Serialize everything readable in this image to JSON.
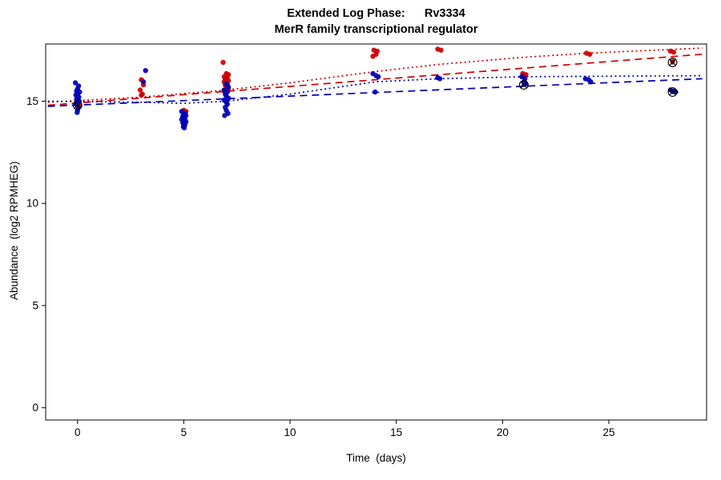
{
  "chart_data": {
    "type": "scatter",
    "title": "Extended Log Phase:      Rv3334",
    "subtitle": "MerR family transcriptional regulator",
    "xlabel": "Time  (days)",
    "ylabel": "Abundance  (log2 RPMHEG)",
    "xlim": [
      -1.5,
      29.6
    ],
    "ylim": [
      -0.6,
      17.8
    ],
    "xticks": [
      0,
      5,
      10,
      15,
      20,
      25
    ],
    "yticks": [
      0,
      5,
      10,
      15
    ],
    "grid": false,
    "legend": "none",
    "colors": {
      "red_series": "#cc0000",
      "blue_series": "#0000b4",
      "marker_outline": "#000000"
    },
    "series": [
      {
        "name": "red-points",
        "color": "#cc0000",
        "points": [
          [
            -0.05,
            15.05
          ],
          [
            0.05,
            14.95
          ],
          [
            0.0,
            14.9
          ],
          [
            0.1,
            14.8
          ],
          [
            3.0,
            16.05
          ],
          [
            3.1,
            15.8
          ],
          [
            2.95,
            15.55
          ],
          [
            3.05,
            15.35
          ],
          [
            3.0,
            15.3
          ],
          [
            5.0,
            14.55
          ],
          [
            5.1,
            14.5
          ],
          [
            6.85,
            16.9
          ],
          [
            7.0,
            16.35
          ],
          [
            7.1,
            16.3
          ],
          [
            6.9,
            16.2
          ],
          [
            7.05,
            16.15
          ],
          [
            6.95,
            16.1
          ],
          [
            7.0,
            16.05
          ],
          [
            7.1,
            16.0
          ],
          [
            6.9,
            15.95
          ],
          [
            7.0,
            15.9
          ],
          [
            7.05,
            15.85
          ],
          [
            6.95,
            15.8
          ],
          [
            7.0,
            15.7
          ],
          [
            7.1,
            15.6
          ],
          [
            6.9,
            15.5
          ],
          [
            13.95,
            17.5
          ],
          [
            14.1,
            17.45
          ],
          [
            14.05,
            17.3
          ],
          [
            13.9,
            17.2
          ],
          [
            16.95,
            17.55
          ],
          [
            17.1,
            17.5
          ],
          [
            20.95,
            16.35
          ],
          [
            21.1,
            16.3
          ],
          [
            21.0,
            16.25
          ],
          [
            23.95,
            17.35
          ],
          [
            24.1,
            17.3
          ],
          [
            27.9,
            17.45
          ],
          [
            28.05,
            17.4
          ],
          [
            28.0,
            16.95
          ]
        ]
      },
      {
        "name": "blue-points",
        "color": "#0000b4",
        "points": [
          [
            -0.1,
            15.9
          ],
          [
            0.05,
            15.75
          ],
          [
            0.0,
            15.6
          ],
          [
            -0.05,
            15.5
          ],
          [
            0.1,
            15.45
          ],
          [
            0.0,
            15.35
          ],
          [
            -0.08,
            15.3
          ],
          [
            0.06,
            15.2
          ],
          [
            0.0,
            15.15
          ],
          [
            -0.04,
            15.1
          ],
          [
            0.08,
            15.0
          ],
          [
            0.0,
            14.95
          ],
          [
            -0.06,
            14.85
          ],
          [
            0.04,
            14.7
          ],
          [
            0.0,
            14.55
          ],
          [
            -0.02,
            14.45
          ],
          [
            3.2,
            16.5
          ],
          [
            3.1,
            15.95
          ],
          [
            4.9,
            14.5
          ],
          [
            5.05,
            14.4
          ],
          [
            5.0,
            14.35
          ],
          [
            5.1,
            14.3
          ],
          [
            4.95,
            14.25
          ],
          [
            5.0,
            14.2
          ],
          [
            5.05,
            14.15
          ],
          [
            4.9,
            14.1
          ],
          [
            5.0,
            14.05
          ],
          [
            5.1,
            14.0
          ],
          [
            4.95,
            13.95
          ],
          [
            5.0,
            13.9
          ],
          [
            5.05,
            13.85
          ],
          [
            5.0,
            13.8
          ],
          [
            4.98,
            13.75
          ],
          [
            5.02,
            13.7
          ],
          [
            7.0,
            15.85
          ],
          [
            7.1,
            15.7
          ],
          [
            6.9,
            15.55
          ],
          [
            7.05,
            15.45
          ],
          [
            6.95,
            15.35
          ],
          [
            7.0,
            15.25
          ],
          [
            7.1,
            15.15
          ],
          [
            6.9,
            15.05
          ],
          [
            7.0,
            14.95
          ],
          [
            7.05,
            14.85
          ],
          [
            6.95,
            14.7
          ],
          [
            7.0,
            14.55
          ],
          [
            7.08,
            14.4
          ],
          [
            6.92,
            14.3
          ],
          [
            13.9,
            16.35
          ],
          [
            14.05,
            16.25
          ],
          [
            14.15,
            16.2
          ],
          [
            14.0,
            15.45
          ],
          [
            16.95,
            16.15
          ],
          [
            17.05,
            16.1
          ],
          [
            20.9,
            16.2
          ],
          [
            21.05,
            16.1
          ],
          [
            21.0,
            15.95
          ],
          [
            21.1,
            15.85
          ],
          [
            23.9,
            16.1
          ],
          [
            24.05,
            16.05
          ],
          [
            24.15,
            15.95
          ],
          [
            27.9,
            15.55
          ],
          [
            28.05,
            15.5
          ],
          [
            28.15,
            15.45
          ]
        ]
      }
    ],
    "outlier_markers": [
      {
        "x": 0,
        "y": 14.8,
        "dot_color": "#00008b"
      },
      {
        "x": 21,
        "y": 15.8,
        "dot_color": "#00008b"
      },
      {
        "x": 28,
        "y": 16.9,
        "dot_color": "#8b0000"
      },
      {
        "x": 28,
        "y": 15.45,
        "dot_color": "#00008b"
      }
    ],
    "trend_lines": [
      {
        "name": "red-dotted-fit",
        "color": "#cc0000",
        "dash": "dotted",
        "points": [
          [
            -1.4,
            14.95
          ],
          [
            3,
            15.2
          ],
          [
            7,
            15.55
          ],
          [
            10,
            15.9
          ],
          [
            14,
            16.45
          ],
          [
            17,
            16.8
          ],
          [
            21,
            17.15
          ],
          [
            24,
            17.35
          ],
          [
            29.4,
            17.6
          ]
        ]
      },
      {
        "name": "red-dashed-fit",
        "color": "#cc0000",
        "dash": "dashed",
        "points": [
          [
            -1.4,
            14.8
          ],
          [
            29.4,
            17.3
          ]
        ]
      },
      {
        "name": "blue-dotted-fit",
        "color": "#0000b4",
        "dash": "dotted",
        "points": [
          [
            -1.4,
            15.0
          ],
          [
            3,
            14.95
          ],
          [
            5,
            14.9
          ],
          [
            7,
            15.0
          ],
          [
            10,
            15.35
          ],
          [
            14,
            15.95
          ],
          [
            17,
            16.1
          ],
          [
            21,
            16.2
          ],
          [
            24,
            16.22
          ],
          [
            29.4,
            16.25
          ]
        ]
      },
      {
        "name": "blue-dashed-fit",
        "color": "#0000b4",
        "dash": "dashed",
        "points": [
          [
            -1.4,
            14.75
          ],
          [
            29.4,
            16.1
          ]
        ]
      }
    ]
  }
}
